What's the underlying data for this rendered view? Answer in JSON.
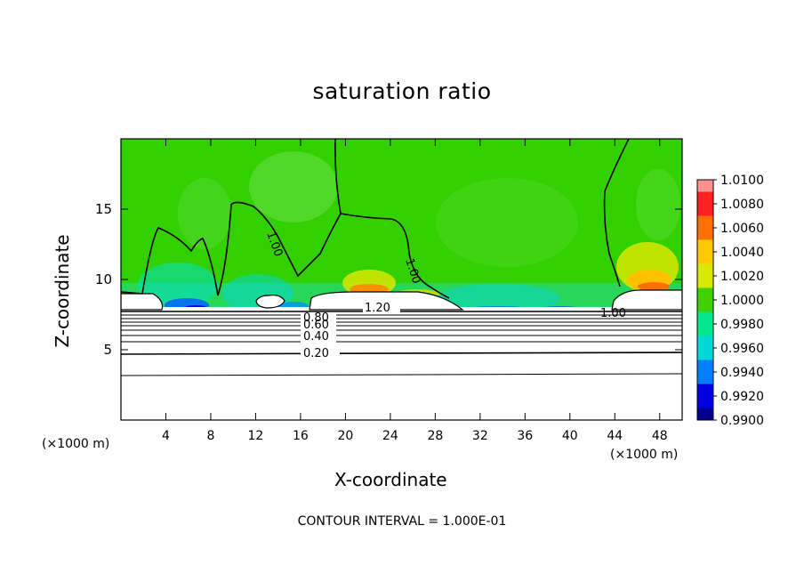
{
  "chart_data": {
    "type": "heatmap",
    "title": "saturation ratio",
    "xlabel": "X-coordinate",
    "ylabel": "Z-coordinate",
    "x_unit_left": "(×1000 m)",
    "x_unit_right": "(×1000 m)",
    "xlim": [
      0,
      50
    ],
    "ylim": [
      0,
      20
    ],
    "x_ticks": [
      4,
      8,
      12,
      16,
      20,
      24,
      28,
      32,
      36,
      40,
      44,
      48
    ],
    "y_ticks": [
      5,
      10,
      15
    ],
    "colorbar": {
      "ticks": [
        "1.0100",
        "1.0080",
        "1.0060",
        "1.0040",
        "1.0020",
        "1.0000",
        "0.9980",
        "0.9960",
        "0.9940",
        "0.9920",
        "0.9900"
      ],
      "colors": [
        "#ff9090",
        "#ff2020",
        "#ff7000",
        "#ffc800",
        "#d8e800",
        "#40d000",
        "#00e890",
        "#00d8d8",
        "#0080ff",
        "#0000e0",
        "#000090",
        "#7020a0"
      ]
    },
    "contour_labels": [
      "1.00",
      "1.00",
      "1.20",
      "1.00",
      "0.80",
      "0.60",
      "0.40",
      "0.20"
    ],
    "contour_interval_text": "CONTOUR INTERVAL = 1.000E-01"
  },
  "colors": {
    "background_field": "#33d000",
    "subsaturated_region": "#ffffff",
    "contour_line": "#000000"
  }
}
